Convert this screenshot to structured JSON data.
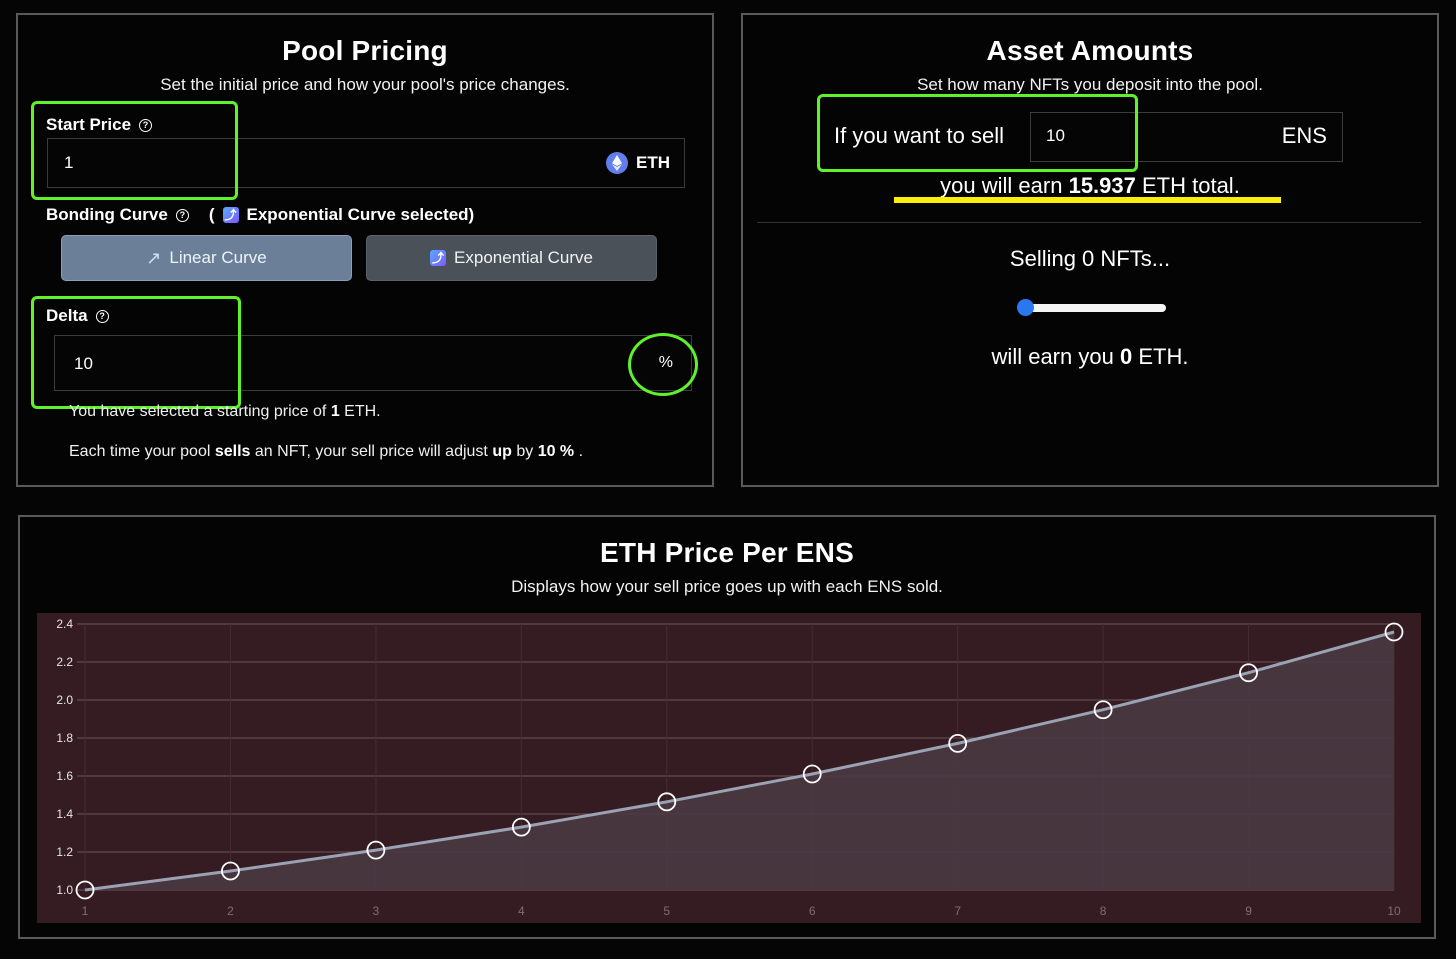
{
  "pool_pricing": {
    "title": "Pool Pricing",
    "subtitle": "Set the initial price and how your pool's price changes.",
    "start_price": {
      "label": "Start Price",
      "value": "1",
      "currency": "ETH"
    },
    "bonding_curve": {
      "label": "Bonding Curve",
      "selected_open": "(",
      "selected_text": "Exponential Curve selected)",
      "options": [
        {
          "label": "Linear Curve",
          "icon": "↗"
        },
        {
          "label": "Exponential Curve",
          "icon": "⤴"
        }
      ]
    },
    "delta": {
      "label": "Delta",
      "value": "10",
      "unit": "%"
    },
    "info_line1": {
      "pre": "You have selected a starting price of",
      "price": "1",
      "post": "ETH."
    },
    "info_line2": {
      "p1": "Each time your pool",
      "b1": "sells",
      "p2": "an NFT, your sell price will adjust",
      "b2": "up",
      "p3": "by",
      "b3": "10 %",
      "p4": "."
    }
  },
  "asset_amounts": {
    "title": "Asset Amounts",
    "subtitle": "Set how many NFTs you deposit into the pool.",
    "sell_prefix": "If you want to sell",
    "sell_value": "10",
    "sell_unit": "ENS",
    "earn_pre": "you will earn",
    "earn_value": "15.937",
    "earn_post": "ETH total.",
    "selling_text": "Selling 0 NFTs...",
    "slider_value": 0,
    "will_earn_pre": "will earn you",
    "will_earn_value": "0",
    "will_earn_post": "ETH."
  },
  "chart_panel": {
    "title": "ETH Price Per ENS",
    "subtitle": "Displays how your sell price goes up with each ENS sold."
  },
  "chart_data": {
    "type": "area",
    "x": [
      1,
      2,
      3,
      4,
      5,
      6,
      7,
      8,
      9,
      10
    ],
    "values": [
      1.0,
      1.1,
      1.21,
      1.331,
      1.4641,
      1.61051,
      1.771561,
      1.9487171,
      2.14358881,
      2.357947691
    ],
    "x_ticks": [
      "1",
      "2",
      "3",
      "4",
      "5",
      "6",
      "7",
      "8",
      "9",
      "10"
    ],
    "y_ticks": [
      "2.4",
      "2.2",
      "2.0",
      "1.8",
      "1.6",
      "1.4",
      "1.2",
      "1.0"
    ],
    "ylim": [
      1.0,
      2.4
    ],
    "xlim": [
      1,
      10
    ],
    "grid": true,
    "line_color": "#9aa2b4",
    "fill_color": "#4a3a42",
    "background_color": "#351c22"
  },
  "colors": {
    "highlight_green": "#5ff22a",
    "underline_yellow": "#f7ef0d",
    "linear_button_bg": "#6c7f98",
    "expo_button_bg": "#4a5158",
    "slider_thumb": "#2a78f0"
  }
}
